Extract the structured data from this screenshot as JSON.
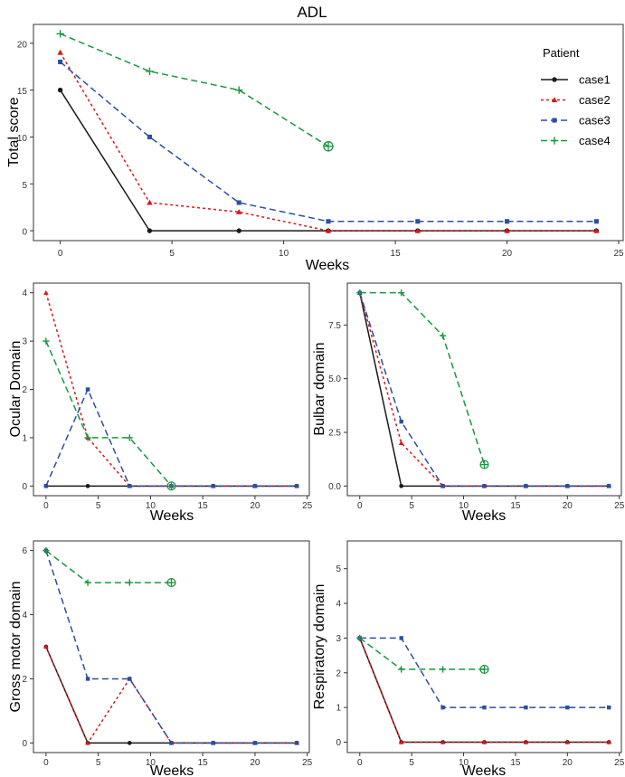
{
  "chart_data": [
    {
      "type": "line",
      "title": "ADL",
      "xlabel": "Weeks",
      "ylabel": "Total score",
      "xlim": [
        -1.2,
        25.2
      ],
      "ylim": [
        -1.05,
        22
      ],
      "xticks": [
        "0",
        "5",
        "10",
        "15",
        "20",
        "25"
      ],
      "yticks": [
        "0",
        "5",
        "10",
        "15",
        "20"
      ],
      "legend": {
        "title": "Patient",
        "position": "top-right",
        "entries": [
          "case1",
          "case2",
          "case3",
          "case4"
        ]
      },
      "series": [
        {
          "name": "case1",
          "x": [
            0,
            4,
            8,
            12,
            16,
            20,
            24
          ],
          "y": [
            15,
            0,
            0,
            0,
            0,
            0,
            0
          ]
        },
        {
          "name": "case2",
          "x": [
            0,
            4,
            8,
            12,
            16,
            20,
            24
          ],
          "y": [
            19,
            3,
            2,
            0,
            0,
            0,
            0
          ]
        },
        {
          "name": "case3",
          "x": [
            0,
            4,
            8,
            12,
            16,
            20,
            24
          ],
          "y": [
            18,
            10,
            3,
            1,
            1,
            1,
            1
          ]
        },
        {
          "name": "case4",
          "x": [
            0,
            4,
            8,
            12
          ],
          "y": [
            21,
            17,
            15,
            9
          ]
        }
      ]
    },
    {
      "type": "line",
      "title": "",
      "xlabel": "Weeks",
      "ylabel": "Ocular Domain",
      "xlim": [
        -1.2,
        25.2
      ],
      "ylim": [
        -0.2,
        4.2
      ],
      "xticks": [
        "0",
        "5",
        "10",
        "15",
        "20",
        "25"
      ],
      "yticks": [
        "0",
        "1",
        "2",
        "3",
        "4"
      ],
      "series": [
        {
          "name": "case1",
          "x": [
            0,
            4,
            8,
            12,
            16,
            20,
            24
          ],
          "y": [
            0,
            0,
            0,
            0,
            0,
            0,
            0
          ]
        },
        {
          "name": "case2",
          "x": [
            0,
            4,
            8,
            12,
            16,
            20,
            24
          ],
          "y": [
            4,
            1,
            0,
            0,
            0,
            0,
            0
          ]
        },
        {
          "name": "case3",
          "x": [
            0,
            4,
            8,
            12,
            16,
            20,
            24
          ],
          "y": [
            0,
            2,
            0,
            0,
            0,
            0,
            0
          ]
        },
        {
          "name": "case4",
          "x": [
            0,
            4,
            8,
            12
          ],
          "y": [
            3,
            1,
            1,
            0
          ]
        }
      ]
    },
    {
      "type": "line",
      "title": "",
      "xlabel": "Weeks",
      "ylabel": "Bulbar domain",
      "xlim": [
        -1.2,
        25.2
      ],
      "ylim": [
        -0.45,
        9.45
      ],
      "xticks": [
        "0",
        "5",
        "10",
        "15",
        "20",
        "25"
      ],
      "yticks": [
        "0.0",
        "2.5",
        "5.0",
        "7.5"
      ],
      "series": [
        {
          "name": "case1",
          "x": [
            0,
            4,
            8,
            12,
            16,
            20,
            24
          ],
          "y": [
            9,
            0,
            0,
            0,
            0,
            0,
            0
          ]
        },
        {
          "name": "case2",
          "x": [
            0,
            4,
            8,
            12,
            16,
            20,
            24
          ],
          "y": [
            9,
            2,
            0,
            0,
            0,
            0,
            0
          ]
        },
        {
          "name": "case3",
          "x": [
            0,
            4,
            8,
            12,
            16,
            20,
            24
          ],
          "y": [
            9,
            3,
            0,
            0,
            0,
            0,
            0
          ]
        },
        {
          "name": "case4",
          "x": [
            0,
            4,
            8,
            12
          ],
          "y": [
            9,
            9,
            7,
            1
          ]
        }
      ]
    },
    {
      "type": "line",
      "title": "",
      "xlabel": "Weeks",
      "ylabel": "Gross motor domain",
      "xlim": [
        -1.2,
        25.2
      ],
      "ylim": [
        -0.3,
        6.3
      ],
      "xticks": [
        "0",
        "5",
        "10",
        "15",
        "20",
        "25"
      ],
      "yticks": [
        "0",
        "2",
        "4",
        "6"
      ],
      "series": [
        {
          "name": "case1",
          "x": [
            0,
            4,
            8,
            12,
            16,
            20,
            24
          ],
          "y": [
            3,
            0,
            0,
            0,
            0,
            0,
            0
          ]
        },
        {
          "name": "case2",
          "x": [
            0,
            4,
            8,
            12,
            16,
            20,
            24
          ],
          "y": [
            3,
            0,
            2,
            0,
            0,
            0,
            0
          ]
        },
        {
          "name": "case3",
          "x": [
            0,
            4,
            8,
            12,
            16,
            20,
            24
          ],
          "y": [
            6,
            2,
            2,
            0,
            0,
            0,
            0
          ]
        },
        {
          "name": "case4",
          "x": [
            0,
            4,
            8,
            12
          ],
          "y": [
            6,
            5,
            5,
            5
          ]
        }
      ]
    },
    {
      "type": "line",
      "title": "",
      "xlabel": "Weeks",
      "ylabel": "Respiratory domain",
      "xlim": [
        -1.2,
        25.2
      ],
      "ylim": [
        -0.3,
        5.8
      ],
      "xticks": [
        "0",
        "5",
        "10",
        "15",
        "20",
        "25"
      ],
      "yticks": [
        "0",
        "1",
        "2",
        "3",
        "4",
        "5"
      ],
      "series": [
        {
          "name": "case1",
          "x": [
            0,
            4,
            8,
            12,
            16,
            20,
            24
          ],
          "y": [
            3,
            0,
            0,
            0,
            0,
            0,
            0
          ]
        },
        {
          "name": "case2",
          "x": [
            0,
            4,
            8,
            12,
            16,
            20,
            24
          ],
          "y": [
            3,
            0,
            0,
            0,
            0,
            0,
            0
          ]
        },
        {
          "name": "case3",
          "x": [
            0,
            4,
            8,
            12,
            16,
            20,
            24
          ],
          "y": [
            3,
            3,
            1,
            1,
            1,
            1,
            1
          ]
        },
        {
          "name": "case4",
          "x": [
            0,
            4,
            8,
            12
          ],
          "y": [
            3,
            2.1,
            2.1,
            2.1
          ]
        }
      ]
    }
  ],
  "styles": {
    "case1": {
      "color": "#1a1a1a",
      "dash": "",
      "marker": "circle"
    },
    "case2": {
      "color": "#d7191c",
      "dash": "3,3",
      "marker": "triangle"
    },
    "case3": {
      "color": "#2c4f9e",
      "dash": "7,4",
      "marker": "square"
    },
    "case4": {
      "color": "#1a9641",
      "dash": "7,4",
      "marker": "plus"
    }
  }
}
